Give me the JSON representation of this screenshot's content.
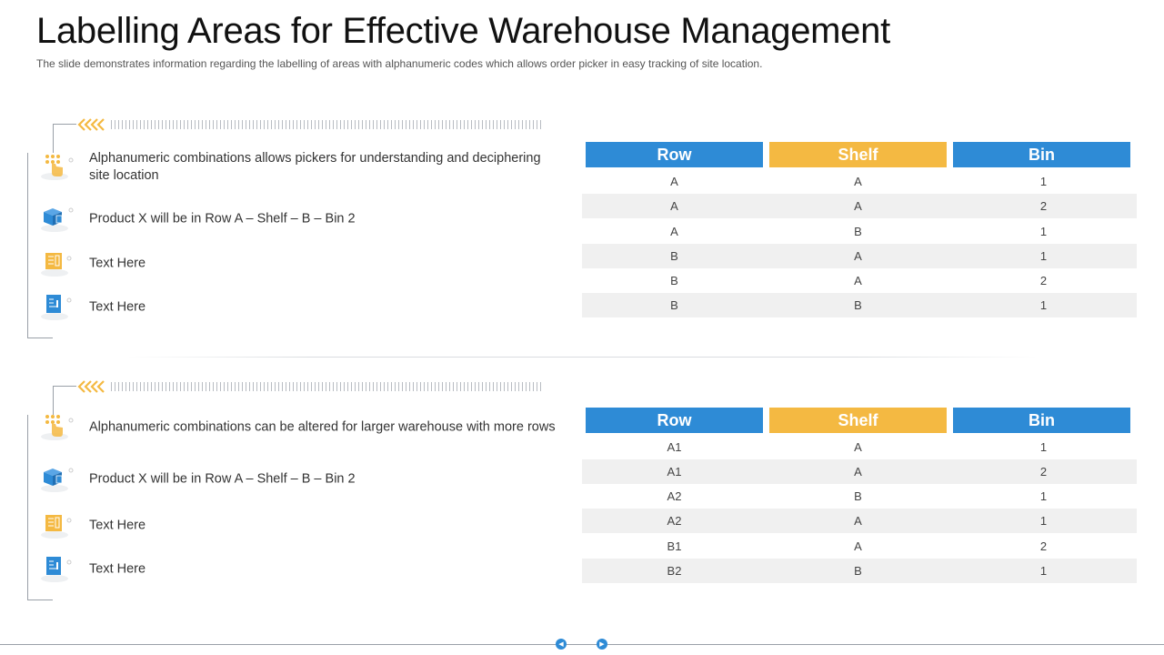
{
  "header": {
    "title": "Labelling Areas for Effective Warehouse Management",
    "subtitle": "The slide demonstrates information regarding the labelling of areas with alphanumeric codes which allows order picker in easy tracking of site location."
  },
  "colors": {
    "blue": "#2e8bd6",
    "orange": "#f4b942",
    "alt_row": "#f0f0f0"
  },
  "sections": [
    {
      "items": [
        {
          "icon": "hand-pointer-icon",
          "text": "Alphanumeric combinations allows pickers for understanding and deciphering site location"
        },
        {
          "icon": "box-icon",
          "text": "Product X will be in Row A – Shelf – B – Bin 2"
        },
        {
          "icon": "document-icon",
          "text": "Text Here"
        },
        {
          "icon": "clipboard-icon",
          "text": "Text Here"
        }
      ],
      "table": {
        "headers": [
          "Row",
          "Shelf",
          "Bin"
        ],
        "rows": [
          [
            "A",
            "A",
            "1"
          ],
          [
            "A",
            "A",
            "2"
          ],
          [
            "A",
            "B",
            "1"
          ],
          [
            "B",
            "A",
            "1"
          ],
          [
            "B",
            "A",
            "2"
          ],
          [
            "B",
            "B",
            "1"
          ]
        ]
      }
    },
    {
      "items": [
        {
          "icon": "hand-pointer-icon",
          "text": "Alphanumeric combinations can be altered for larger warehouse with more rows"
        },
        {
          "icon": "box-icon",
          "text": "Product X will be in Row A – Shelf – B – Bin 2"
        },
        {
          "icon": "document-icon",
          "text": "Text Here"
        },
        {
          "icon": "clipboard-icon",
          "text": "Text Here"
        }
      ],
      "table": {
        "headers": [
          "Row",
          "Shelf",
          "Bin"
        ],
        "rows": [
          [
            "A1",
            "A",
            "1"
          ],
          [
            "A1",
            "A",
            "2"
          ],
          [
            "A2",
            "B",
            "1"
          ],
          [
            "A2",
            "A",
            "1"
          ],
          [
            "B1",
            "A",
            "2"
          ],
          [
            "B2",
            "B",
            "1"
          ]
        ]
      }
    }
  ],
  "footer": {
    "prev_icon": "previous-slide-icon",
    "next_icon": "next-slide-icon"
  }
}
